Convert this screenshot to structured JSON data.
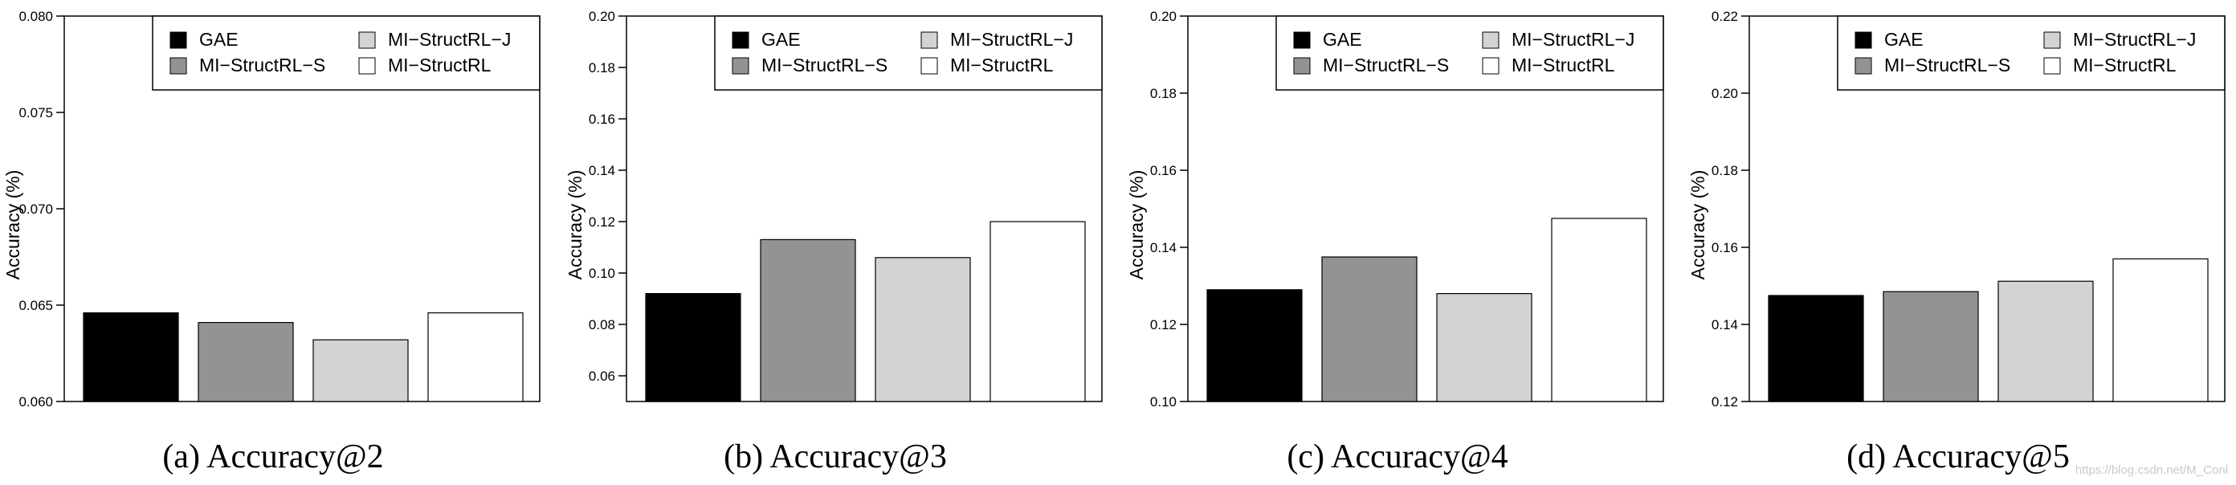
{
  "colors": {
    "GAE": "#000000",
    "MI-StructRL-S": "#939393",
    "MI-StructRL-J": "#d3d3d3",
    "MI-StructRL": "#ffffff",
    "axis": "#000000",
    "watermark": "#c9c9c9"
  },
  "watermark": "https://blog.csdn.net/M_Conl",
  "chart_data": [
    {
      "type": "bar",
      "caption": "(a)  Accuracy@2",
      "ylabel": "Accuracy (%)",
      "categories": [
        "GAE",
        "MI−StructRL−S",
        "MI−StructRL−J",
        "MI−StructRL"
      ],
      "values": [
        0.0646,
        0.0641,
        0.0632,
        0.0646
      ],
      "ylim": [
        0.06,
        0.08
      ],
      "yticks": [
        "0.060",
        "0.065",
        "0.070",
        "0.075",
        "0.080"
      ],
      "legend": [
        "GAE",
        "MI−StructRL−J",
        "MI−StructRL−S",
        "MI−StructRL"
      ],
      "legend_position": "top-right"
    },
    {
      "type": "bar",
      "caption": "(b)  Accuracy@3",
      "ylabel": "Accuracy (%)",
      "categories": [
        "GAE",
        "MI−StructRL−S",
        "MI−StructRL−J",
        "MI−StructRL"
      ],
      "values": [
        0.092,
        0.113,
        0.106,
        0.12
      ],
      "ylim": [
        0.05,
        0.2
      ],
      "yticks": [
        "0.06",
        "0.08",
        "0.10",
        "0.12",
        "0.14",
        "0.16",
        "0.18",
        "0.20"
      ],
      "legend": [
        "GAE",
        "MI−StructRL−J",
        "MI−StructRL−S",
        "MI−StructRL"
      ],
      "legend_position": "top-right"
    },
    {
      "type": "bar",
      "caption": "(c)  Accuracy@4",
      "ylabel": "Accuracy (%)",
      "categories": [
        "GAE",
        "MI−StructRL−S",
        "MI−StructRL−J",
        "MI−StructRL"
      ],
      "values": [
        0.129,
        0.1375,
        0.128,
        0.1475
      ],
      "ylim": [
        0.1,
        0.2
      ],
      "yticks": [
        "0.10",
        "0.12",
        "0.14",
        "0.16",
        "0.18",
        "0.20"
      ],
      "legend": [
        "GAE",
        "MI−StructRL−J",
        "MI−StructRL−S",
        "MI−StructRL"
      ],
      "legend_position": "top-right"
    },
    {
      "type": "bar",
      "caption": "(d)  Accuracy@5",
      "ylabel": "Accuracy (%)",
      "categories": [
        "GAE",
        "MI−StructRL−S",
        "MI−StructRL−J",
        "MI−StructRL"
      ],
      "values": [
        0.1475,
        0.1485,
        0.1512,
        0.157
      ],
      "ylim": [
        0.12,
        0.22
      ],
      "yticks": [
        "0.12",
        "0.14",
        "0.16",
        "0.18",
        "0.20",
        "0.22"
      ],
      "legend": [
        "GAE",
        "MI−StructRL−J",
        "MI−StructRL−S",
        "MI−StructRL"
      ],
      "legend_position": "top-right"
    }
  ]
}
